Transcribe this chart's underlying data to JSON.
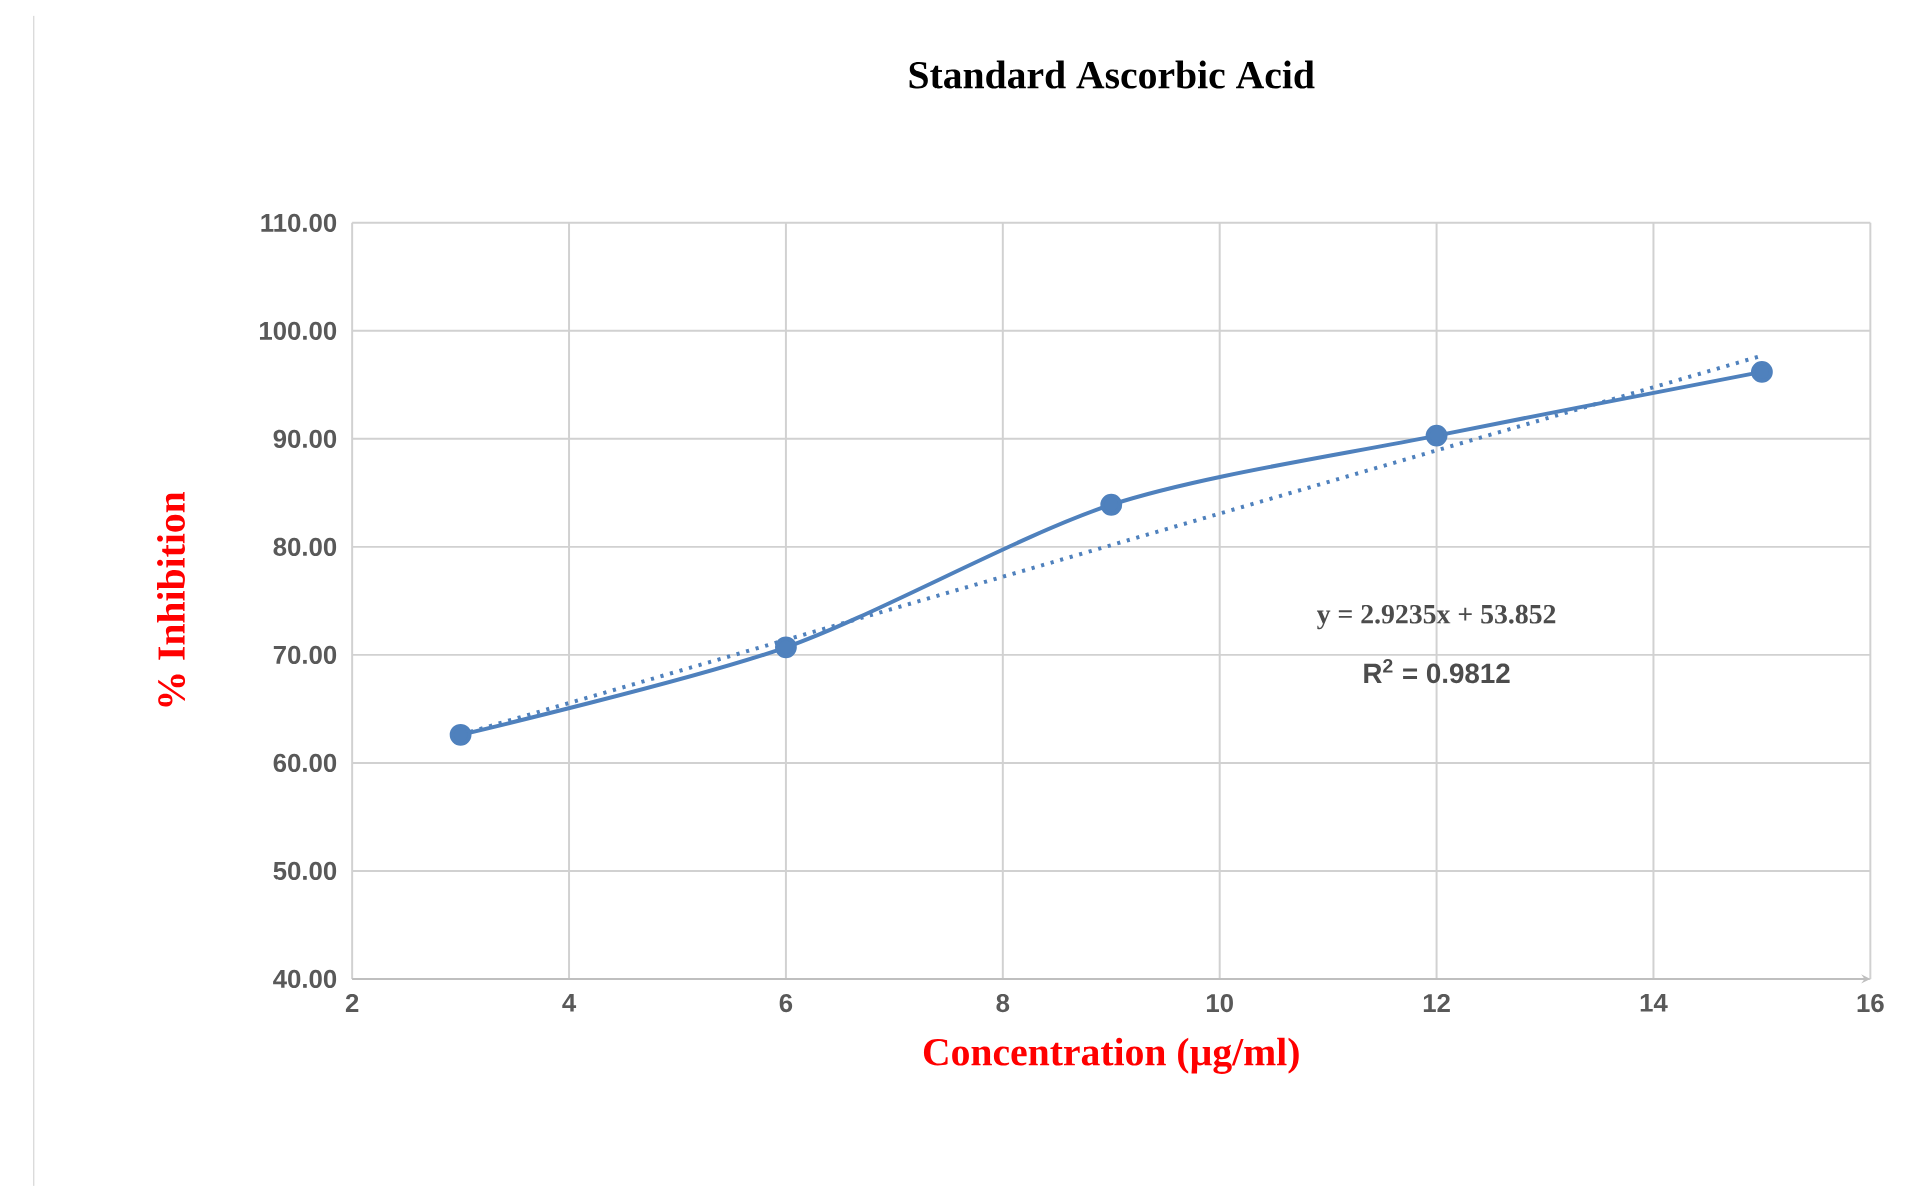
{
  "chart_data": {
    "type": "line",
    "title": "Standard Ascorbic Acid",
    "xlabel": "Concentration (µg/ml)",
    "ylabel": "% Inhibition",
    "xlim": [
      2,
      16
    ],
    "xticks": [
      2,
      4,
      6,
      8,
      10,
      12,
      14,
      16
    ],
    "ylim": [
      40,
      110
    ],
    "yticks": [
      {
        "value": 40,
        "label": "40.00"
      },
      {
        "value": 50,
        "label": "50.00"
      },
      {
        "value": 60,
        "label": "60.00"
      },
      {
        "value": 70,
        "label": "70.00"
      },
      {
        "value": 80,
        "label": "80.00"
      },
      {
        "value": 90,
        "label": "90.00"
      },
      {
        "value": 100,
        "label": "100.00"
      },
      {
        "value": 110,
        "label": "110.00"
      }
    ],
    "grid": true,
    "legend": false,
    "series": [
      {
        "color": "#4f81bd",
        "marker": "circle",
        "line_style": "solid",
        "x": [
          3,
          6,
          9,
          12,
          15
        ],
        "values": [
          62.6,
          70.7,
          83.9,
          90.3,
          96.2
        ]
      },
      {
        "color": "#4f81bd",
        "marker": "none",
        "line_style": "dotted",
        "x": [
          3,
          15
        ],
        "values": [
          62.62,
          97.7
        ]
      }
    ],
    "annotations": [
      "y = 2.9235x + 53.852",
      "R$^{2}$ = 0.9812"
    ]
  }
}
